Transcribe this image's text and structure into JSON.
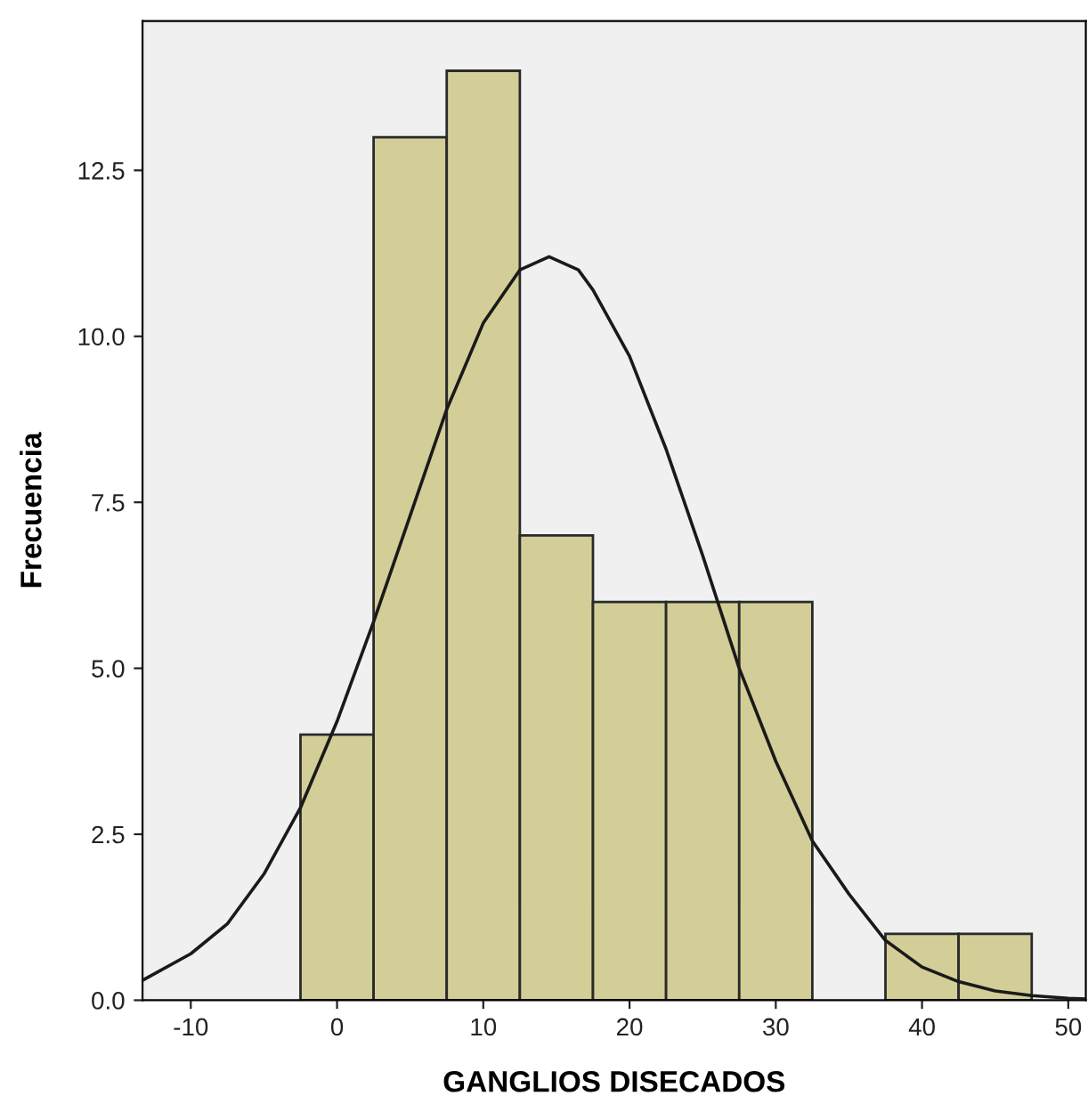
{
  "chart_data": {
    "type": "histogram",
    "xlabel": "GANGLIOS DISECADOS",
    "ylabel": "Frecuencia",
    "bins": [
      -2.5,
      2.5,
      7.5,
      12.5,
      17.5,
      22.5,
      27.5,
      32.5,
      37.5,
      42.5,
      47.5
    ],
    "series": [
      {
        "color": "#d3ce97",
        "values": [
          4,
          13,
          14,
          7,
          6,
          6,
          6,
          0,
          1,
          1
        ]
      },
      {
        "type": "line",
        "color": "#1a1a1a",
        "x": [
          -13.3,
          -10,
          -7.5,
          -5,
          -2.5,
          0,
          2.5,
          5,
          7.5,
          10,
          12.5,
          14.5,
          16.5,
          17.5,
          20,
          22.5,
          25,
          27.5,
          30,
          32.5,
          35,
          37.5,
          40,
          42.5,
          45,
          47.5,
          50,
          51.2
        ],
        "values": [
          0.3,
          0.7,
          1.15,
          1.9,
          2.9,
          4.2,
          5.7,
          7.3,
          8.9,
          10.2,
          11.0,
          11.2,
          11.0,
          10.7,
          9.7,
          8.3,
          6.7,
          5.0,
          3.6,
          2.4,
          1.6,
          0.9,
          0.5,
          0.28,
          0.14,
          0.07,
          0.03,
          0.02
        ]
      }
    ],
    "xlim": [
      -13.3,
      51.2
    ],
    "ylim": [
      0,
      14.75
    ],
    "xticks": [
      -10,
      0,
      10,
      20,
      30,
      40,
      50
    ],
    "yticks": [
      {
        "value": 0,
        "label": "0.0"
      },
      {
        "value": 2.5,
        "label": "2.5"
      },
      {
        "value": 5,
        "label": "5.0"
      },
      {
        "value": 7.5,
        "label": "7.5"
      },
      {
        "value": 10,
        "label": "10.0"
      },
      {
        "value": 12.5,
        "label": "12.5"
      }
    ],
    "grid": false,
    "legend": false
  }
}
